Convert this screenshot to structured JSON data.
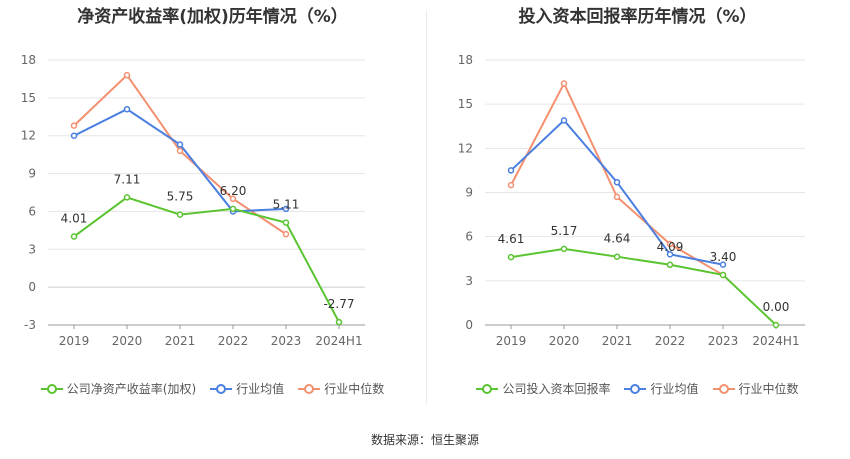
{
  "colors": {
    "company": "#5ac431",
    "avg": "#4a7fe0",
    "median": "#f39070"
  },
  "footer": "数据来源：恒生聚源",
  "chart_data": [
    {
      "type": "line",
      "title": "净资产收益率(加权)历年情况（%）",
      "categories": [
        "2019",
        "2020",
        "2021",
        "2022",
        "2023",
        "2024H1"
      ],
      "ylim": [
        -3,
        18
      ],
      "yticks": [
        -3,
        0,
        3,
        6,
        9,
        12,
        15,
        18
      ],
      "grid": true,
      "legend_placement": "bottom",
      "series": [
        {
          "name": "公司净资产收益率(加权)",
          "key": "company",
          "values": [
            4.01,
            7.11,
            5.75,
            6.2,
            5.11,
            -2.77
          ],
          "labels": [
            "4.01",
            "7.11",
            "5.75",
            "6.20",
            "5.11",
            "-2.77"
          ]
        },
        {
          "name": "行业均值",
          "key": "avg",
          "values": [
            12.0,
            14.1,
            11.3,
            6.0,
            6.2,
            null
          ]
        },
        {
          "name": "行业中位数",
          "key": "median",
          "values": [
            12.8,
            16.8,
            10.8,
            7.0,
            4.2,
            null
          ]
        }
      ]
    },
    {
      "type": "line",
      "title": "投入资本回报率历年情况（%）",
      "categories": [
        "2019",
        "2020",
        "2021",
        "2022",
        "2023",
        "2024H1"
      ],
      "ylim": [
        0,
        18
      ],
      "yticks": [
        0,
        3,
        6,
        9,
        12,
        15,
        18
      ],
      "grid": true,
      "legend_placement": "bottom",
      "series": [
        {
          "name": "公司投入资本回报率",
          "key": "company",
          "values": [
            4.61,
            5.17,
            4.64,
            4.09,
            3.4,
            0.0
          ],
          "labels": [
            "4.61",
            "5.17",
            "4.64",
            "4.09",
            "3.40",
            "0.00"
          ]
        },
        {
          "name": "行业均值",
          "key": "avg",
          "values": [
            10.5,
            13.9,
            9.7,
            4.8,
            4.1,
            null
          ]
        },
        {
          "name": "行业中位数",
          "key": "median",
          "values": [
            9.5,
            16.4,
            8.7,
            5.5,
            3.4,
            null
          ]
        }
      ]
    }
  ]
}
